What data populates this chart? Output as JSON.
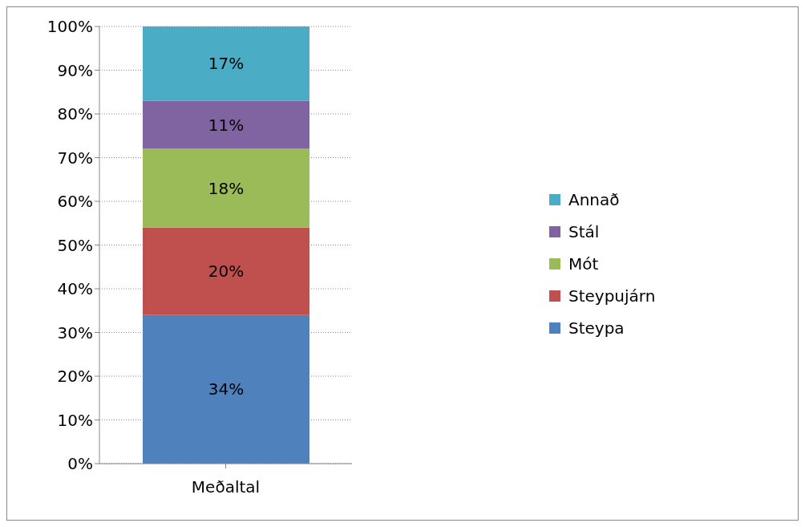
{
  "chart_data": {
    "type": "bar",
    "stacked": true,
    "categories": [
      "Meðaltal"
    ],
    "series": [
      {
        "name": "Steypa",
        "color": "#4f81bd",
        "values": [
          34
        ],
        "value_labels": [
          "34%"
        ]
      },
      {
        "name": "Steypujárn",
        "color": "#c0504d",
        "values": [
          20
        ],
        "value_labels": [
          "20%"
        ]
      },
      {
        "name": "Mót",
        "color": "#9bbb59",
        "values": [
          18
        ],
        "value_labels": [
          "18%"
        ]
      },
      {
        "name": "Stál",
        "color": "#8064a2",
        "values": [
          11
        ],
        "value_labels": [
          "11%"
        ]
      },
      {
        "name": "Annað",
        "color": "#4bacc6",
        "values": [
          17
        ],
        "value_labels": [
          "17%"
        ]
      }
    ],
    "ylim": [
      0,
      100
    ],
    "yticks": [
      {
        "value": 0,
        "label": "0%"
      },
      {
        "value": 10,
        "label": "10%"
      },
      {
        "value": 20,
        "label": "20%"
      },
      {
        "value": 30,
        "label": "30%"
      },
      {
        "value": 40,
        "label": "40%"
      },
      {
        "value": 50,
        "label": "50%"
      },
      {
        "value": 60,
        "label": "60%"
      },
      {
        "value": 70,
        "label": "70%"
      },
      {
        "value": 80,
        "label": "80%"
      },
      {
        "value": 90,
        "label": "90%"
      },
      {
        "value": 100,
        "label": "100%"
      }
    ],
    "grid": "y",
    "legend": "right"
  }
}
